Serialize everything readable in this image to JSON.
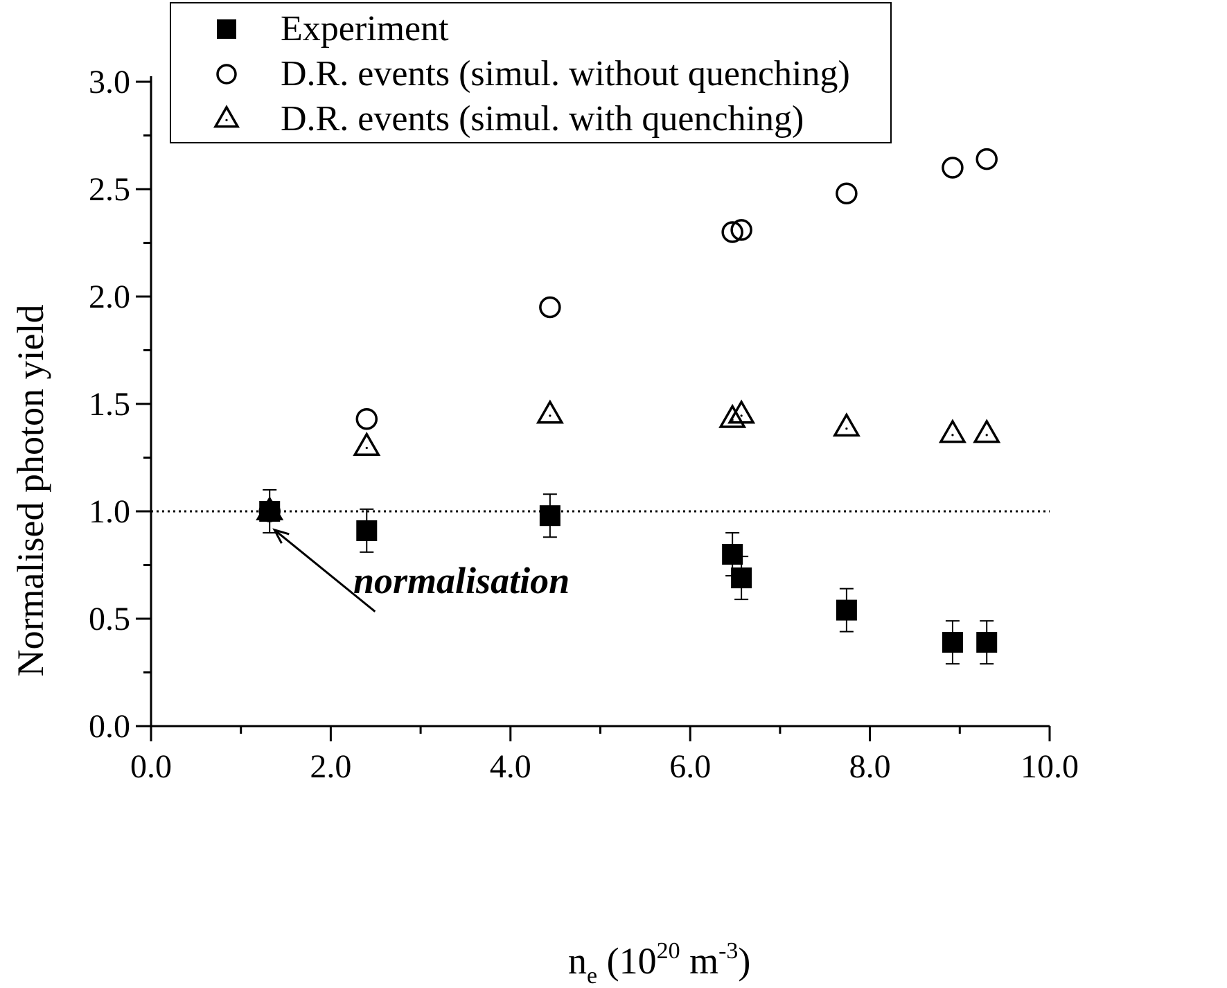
{
  "chart_data": {
    "type": "scatter",
    "title": "",
    "xlabel": {
      "main": "n",
      "sub": "e",
      "pre": " (10",
      "sup1": "20",
      "mid": " m",
      "sup2": "-3",
      "post": ")"
    },
    "ylabel": "Normalised photon yield",
    "xlim": [
      0,
      10
    ],
    "ylim": [
      0,
      3
    ],
    "x_ticks": [
      0,
      2,
      4,
      6,
      8,
      10
    ],
    "x_tick_labels": [
      "0.0",
      "2.0",
      "4.0",
      "6.0",
      "8.0",
      "10.0"
    ],
    "x_minor_ticks": [
      1,
      3,
      5,
      7,
      9
    ],
    "y_ticks": [
      0,
      0.5,
      1,
      1.5,
      2,
      2.5,
      3
    ],
    "y_tick_labels": [
      "0.0",
      "0.5",
      "1.0",
      "1.5",
      "2.0",
      "2.5",
      "3.0"
    ],
    "y_minor_ticks": [
      0.25,
      0.75,
      1.25,
      1.75,
      2.25,
      2.75
    ],
    "grid": false,
    "legend_position": "top",
    "reference_line": {
      "y": 1.0,
      "style": "dotted"
    },
    "series": [
      {
        "name": "Experiment",
        "marker": "filled-square",
        "points": [
          {
            "x": 1.32,
            "y": 1.0,
            "err": 0.1
          },
          {
            "x": 2.4,
            "y": 0.91,
            "err": 0.1
          },
          {
            "x": 4.44,
            "y": 0.98,
            "err": 0.1
          },
          {
            "x": 6.47,
            "y": 0.8,
            "err": 0.1
          },
          {
            "x": 6.57,
            "y": 0.69,
            "err": 0.1
          },
          {
            "x": 7.74,
            "y": 0.54,
            "err": 0.1
          },
          {
            "x": 8.92,
            "y": 0.39,
            "err": 0.1
          },
          {
            "x": 9.3,
            "y": 0.39,
            "err": 0.1
          }
        ]
      },
      {
        "name": "D.R. events (simul. without quenching)",
        "marker": "open-circle",
        "points": [
          {
            "x": 1.32,
            "y": 1.0
          },
          {
            "x": 2.4,
            "y": 1.43
          },
          {
            "x": 4.44,
            "y": 1.95
          },
          {
            "x": 6.47,
            "y": 2.3
          },
          {
            "x": 6.57,
            "y": 2.31
          },
          {
            "x": 7.74,
            "y": 2.48
          },
          {
            "x": 8.92,
            "y": 2.6
          },
          {
            "x": 9.3,
            "y": 2.64
          }
        ]
      },
      {
        "name": "D.R. events (simul. with quenching)",
        "marker": "open-triangle",
        "points": [
          {
            "x": 1.32,
            "y": 1.0
          },
          {
            "x": 2.4,
            "y": 1.3
          },
          {
            "x": 4.44,
            "y": 1.45
          },
          {
            "x": 6.47,
            "y": 1.43
          },
          {
            "x": 6.57,
            "y": 1.45
          },
          {
            "x": 7.74,
            "y": 1.39
          },
          {
            "x": 8.92,
            "y": 1.36
          },
          {
            "x": 9.3,
            "y": 1.36
          }
        ]
      }
    ],
    "annotations": [
      {
        "text": "normalisation",
        "x_from": 2.2,
        "y_from": 0.63,
        "x_to": 1.42,
        "y_to": 0.92
      }
    ]
  }
}
